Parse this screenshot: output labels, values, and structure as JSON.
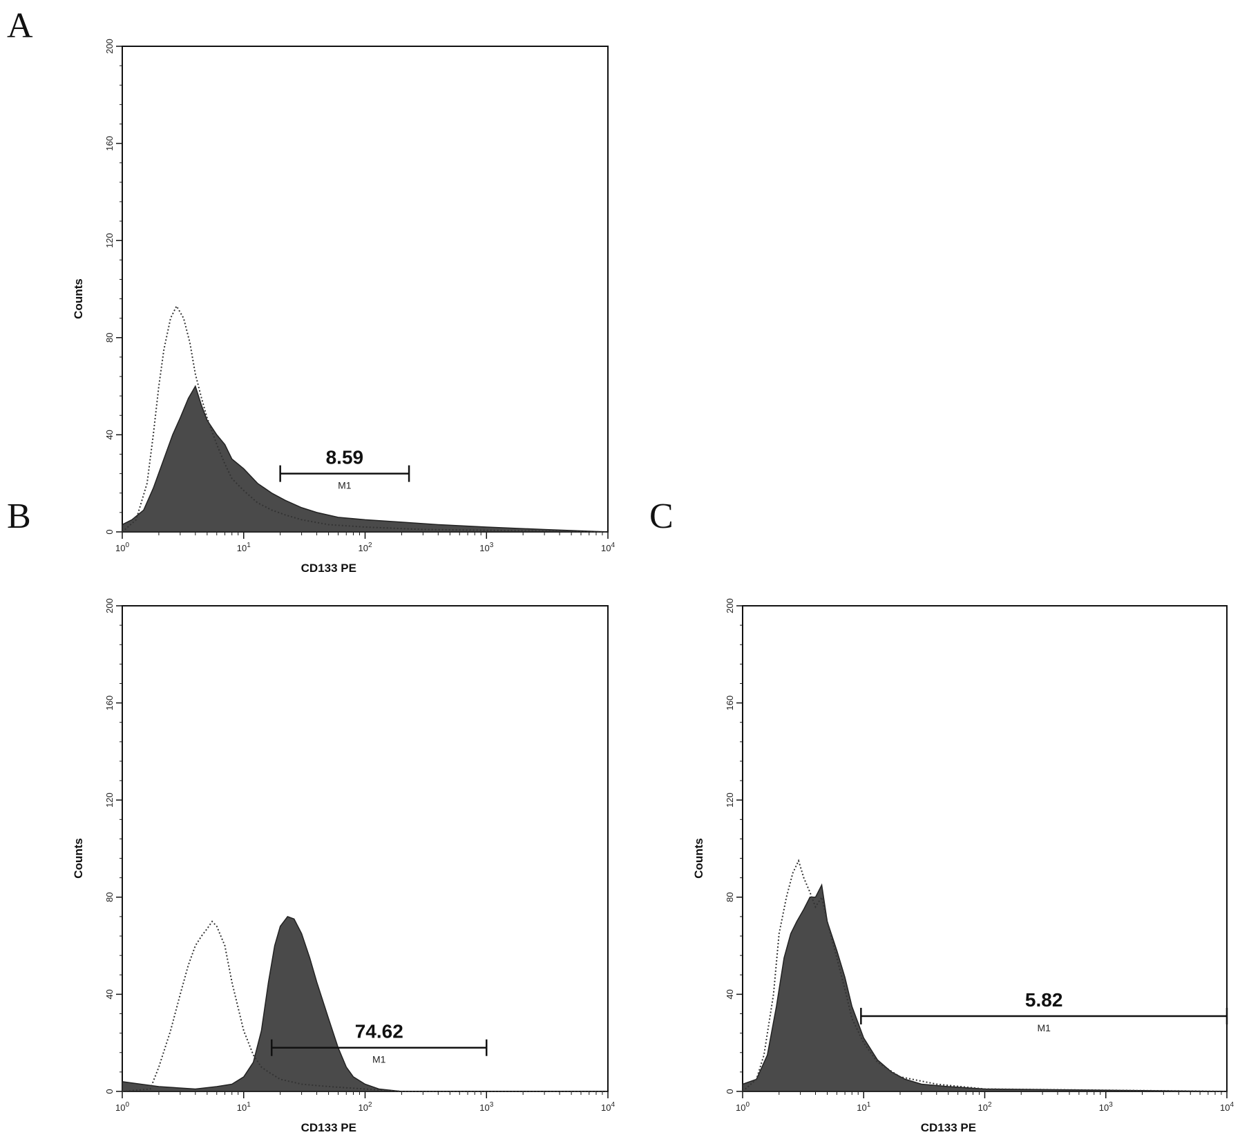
{
  "panels": [
    {
      "letter": "A",
      "xlabel": "CD133 PE",
      "ylabel": "Counts"
    },
    {
      "letter": "B",
      "xlabel": "CD133 PE",
      "ylabel": "Counts"
    },
    {
      "letter": "C",
      "xlabel": "CD133 PE",
      "ylabel": "Counts"
    }
  ],
  "chart_data": [
    {
      "type": "area",
      "panel": "A",
      "xscale": "log",
      "xlim": [
        1,
        10000
      ],
      "ylim": [
        0,
        200
      ],
      "xticks": [
        1,
        10,
        100,
        1000,
        10000
      ],
      "xtick_labels": [
        {
          "base": "10",
          "exp": "0"
        },
        {
          "base": "10",
          "exp": "1"
        },
        {
          "base": "10",
          "exp": "2"
        },
        {
          "base": "10",
          "exp": "3"
        },
        {
          "base": "10",
          "exp": "4"
        }
      ],
      "yticks": [
        "0",
        "40",
        "80",
        "120",
        "160",
        "200"
      ],
      "xlabel": "CD133 PE",
      "ylabel": "Counts",
      "series": [
        {
          "style": "filled",
          "x": [
            1,
            1.2,
            1.5,
            1.8,
            2.2,
            2.6,
            3.0,
            3.5,
            4.0,
            4.5,
            5.0,
            6.0,
            7.0,
            8.0,
            10,
            13,
            17,
            22,
            30,
            40,
            60,
            100,
            200,
            400,
            1000,
            3000,
            10000
          ],
          "y": [
            3,
            5,
            9,
            18,
            30,
            40,
            47,
            55,
            60,
            52,
            46,
            40,
            36,
            30,
            26,
            20,
            16,
            13,
            10,
            8,
            6,
            5,
            4,
            3,
            2,
            1,
            0
          ]
        },
        {
          "style": "dotted",
          "x": [
            1,
            1.3,
            1.6,
            1.8,
            2.0,
            2.2,
            2.5,
            2.8,
            3.2,
            3.6,
            4.0,
            4.5,
            5.0,
            6.0,
            7.0,
            8.0,
            10,
            13,
            17,
            22,
            30,
            50,
            100,
            300,
            10000
          ],
          "y": [
            0,
            5,
            20,
            40,
            60,
            75,
            88,
            93,
            88,
            78,
            65,
            55,
            47,
            36,
            28,
            22,
            17,
            12,
            9,
            7,
            5,
            3,
            2,
            1,
            0
          ]
        }
      ],
      "gates": [
        {
          "name": "M1",
          "value": "8.59",
          "range": [
            20,
            230
          ],
          "y": 24
        }
      ]
    },
    {
      "type": "area",
      "panel": "B",
      "xscale": "log",
      "xlim": [
        1,
        10000
      ],
      "ylim": [
        0,
        200
      ],
      "xticks": [
        1,
        10,
        100,
        1000,
        10000
      ],
      "xtick_labels": [
        {
          "base": "10",
          "exp": "0"
        },
        {
          "base": "10",
          "exp": "1"
        },
        {
          "base": "10",
          "exp": "2"
        },
        {
          "base": "10",
          "exp": "3"
        },
        {
          "base": "10",
          "exp": "4"
        }
      ],
      "yticks": [
        "0",
        "40",
        "80",
        "120",
        "160",
        "200"
      ],
      "xlabel": "CD133 PE",
      "ylabel": "Counts",
      "series": [
        {
          "style": "filled",
          "x": [
            1,
            2,
            4,
            6,
            8,
            10,
            12,
            14,
            16,
            18,
            20,
            23,
            26,
            30,
            35,
            40,
            50,
            60,
            70,
            80,
            100,
            130,
            200,
            10000
          ],
          "y": [
            4,
            2,
            1,
            2,
            3,
            6,
            12,
            25,
            45,
            60,
            68,
            72,
            71,
            65,
            55,
            45,
            30,
            18,
            10,
            6,
            3,
            1,
            0,
            0
          ]
        },
        {
          "style": "dotted",
          "x": [
            1,
            1.7,
            2.0,
            2.5,
            3.0,
            3.5,
            4.0,
            4.5,
            5.0,
            5.5,
            6.0,
            7.0,
            8.0,
            10,
            12,
            14,
            16,
            20,
            30,
            50,
            100,
            200,
            10000
          ],
          "y": [
            0,
            1,
            10,
            25,
            40,
            52,
            60,
            64,
            67,
            70,
            68,
            60,
            45,
            25,
            15,
            10,
            8,
            5,
            3,
            2,
            1,
            0,
            0
          ]
        }
      ],
      "gates": [
        {
          "name": "M1",
          "value": "74.62",
          "range": [
            17,
            1000
          ],
          "y": 18
        }
      ]
    },
    {
      "type": "area",
      "panel": "C",
      "xscale": "log",
      "xlim": [
        1,
        10000
      ],
      "ylim": [
        0,
        200
      ],
      "xticks": [
        1,
        10,
        100,
        1000,
        10000
      ],
      "xtick_labels": [
        {
          "base": "10",
          "exp": "0"
        },
        {
          "base": "10",
          "exp": "1"
        },
        {
          "base": "10",
          "exp": "2"
        },
        {
          "base": "10",
          "exp": "3"
        },
        {
          "base": "10",
          "exp": "4"
        }
      ],
      "yticks": [
        "0",
        "40",
        "80",
        "120",
        "160",
        "200"
      ],
      "xlabel": "CD133 PE",
      "ylabel": "Counts",
      "series": [
        {
          "style": "filled",
          "x": [
            1,
            1.3,
            1.6,
            1.9,
            2.2,
            2.5,
            2.8,
            3.2,
            3.6,
            4.0,
            4.5,
            5.0,
            6.0,
            7.0,
            8.0,
            10,
            13,
            17,
            22,
            30,
            50,
            100,
            10000
          ],
          "y": [
            3,
            5,
            15,
            35,
            55,
            65,
            70,
            75,
            80,
            80,
            85,
            70,
            58,
            47,
            35,
            22,
            13,
            8,
            5,
            3,
            2,
            1,
            0
          ]
        },
        {
          "style": "dotted",
          "x": [
            1,
            1.3,
            1.5,
            1.8,
            2.0,
            2.3,
            2.6,
            2.9,
            3.2,
            3.6,
            4.0,
            4.5,
            5.0,
            6.0,
            7.0,
            8.0,
            10,
            13,
            20,
            40,
            100,
            10000
          ],
          "y": [
            0,
            5,
            15,
            40,
            65,
            80,
            90,
            95,
            88,
            82,
            76,
            80,
            70,
            55,
            42,
            30,
            20,
            12,
            6,
            3,
            1,
            0
          ]
        }
      ],
      "gates": [
        {
          "name": "M1",
          "value": "5.82",
          "range": [
            9.5,
            10000
          ],
          "y": 31
        }
      ]
    }
  ]
}
